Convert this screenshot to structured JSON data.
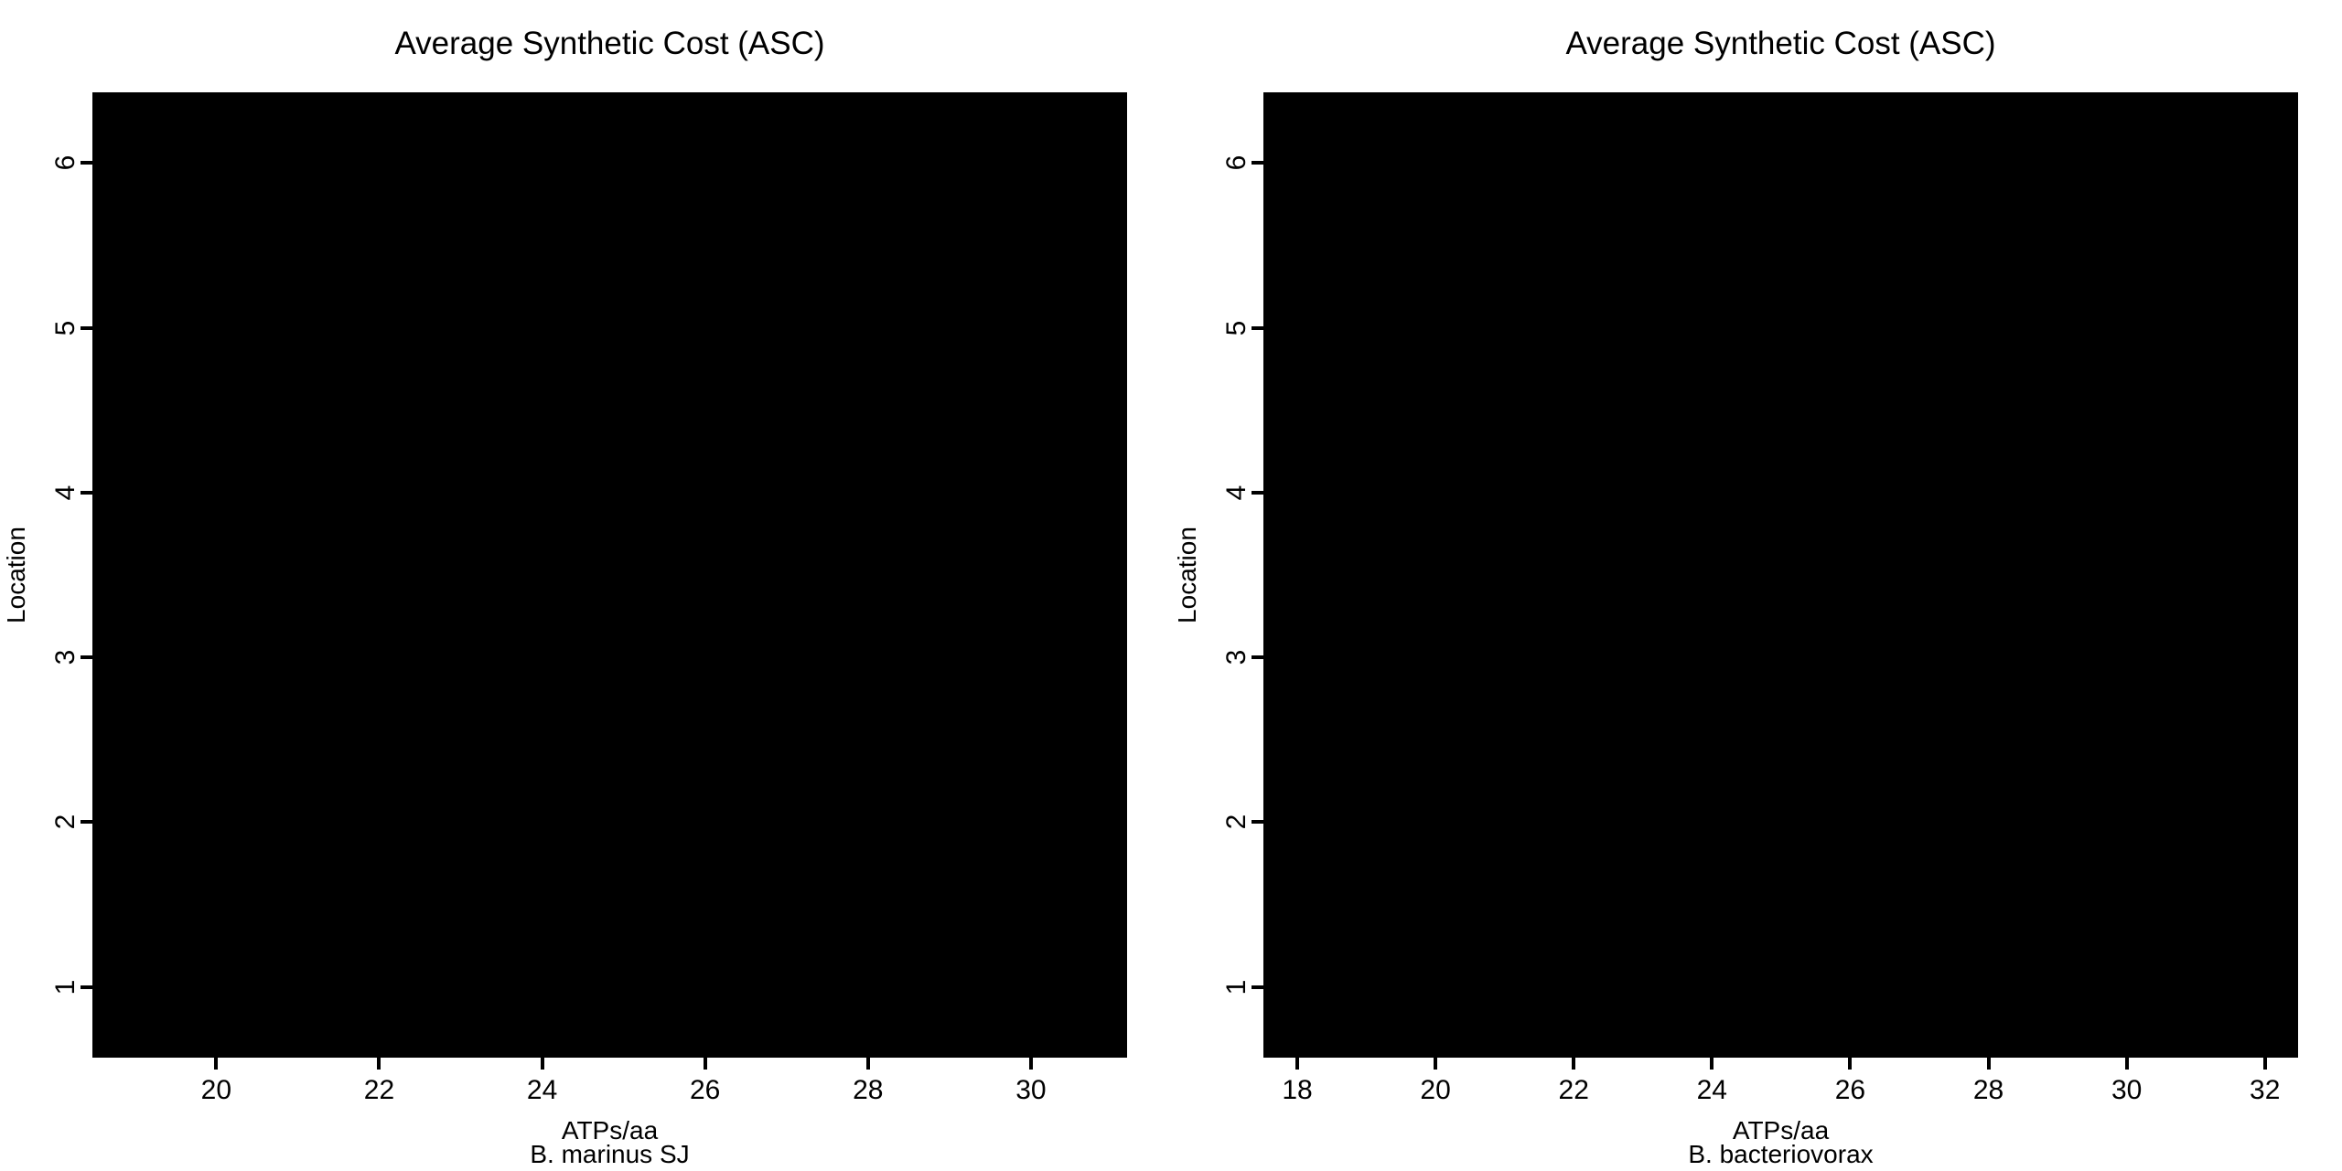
{
  "page": {
    "background_color": "#ffffff",
    "text_color": "#000000",
    "plot_area_fill": "#000000"
  },
  "chart_data": [
    {
      "type": "boxplot",
      "orientation": "horizontal",
      "title": "Average Synthetic Cost (ASC)",
      "xlabel": "ATPs/aa",
      "xsublabel": "B. marinus SJ",
      "ylabel": "Location",
      "categories": [
        1,
        2,
        3,
        4,
        5,
        6
      ],
      "x_ticks": [
        20,
        22,
        24,
        26,
        28,
        30
      ],
      "y_ticks": [
        1,
        2,
        3,
        4,
        5,
        6
      ],
      "xlim": [
        18.48,
        31.18
      ],
      "ylim": [
        0.57,
        6.43
      ],
      "grid": false,
      "legend": false,
      "plot_area_fill": "#000000",
      "visual": "plot region is a single fully saturated solid black rectangle; no individual boxes, whiskers or points are distinguishable"
    },
    {
      "type": "boxplot",
      "orientation": "horizontal",
      "title": "Average Synthetic Cost (ASC)",
      "xlabel": "ATPs/aa",
      "xsublabel": "B. bacteriovorax",
      "ylabel": "Location",
      "categories": [
        1,
        2,
        3,
        4,
        5,
        6
      ],
      "x_ticks": [
        18,
        20,
        22,
        24,
        26,
        28,
        30,
        32
      ],
      "y_ticks": [
        1,
        2,
        3,
        4,
        5,
        6
      ],
      "xlim": [
        17.51,
        32.48
      ],
      "ylim": [
        0.57,
        6.43
      ],
      "grid": false,
      "legend": false,
      "plot_area_fill": "#000000",
      "visual": "plot region is a single fully saturated solid black rectangle; no individual boxes, whiskers or points are distinguishable"
    }
  ]
}
